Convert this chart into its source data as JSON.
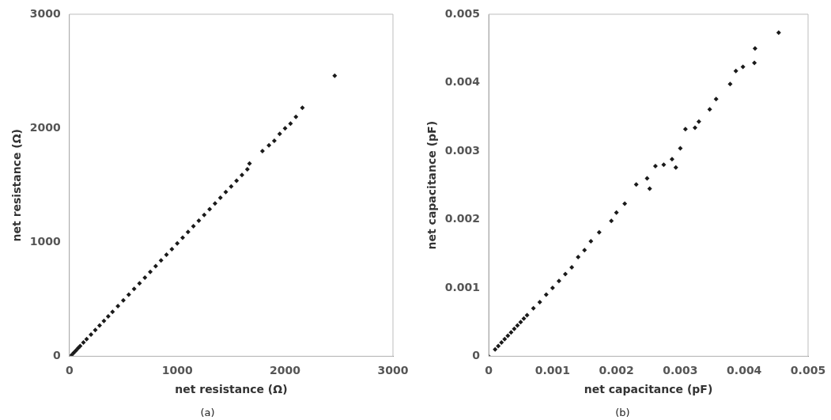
{
  "chart_data": [
    {
      "type": "scatter",
      "xlabel": "net resistance (Ω)",
      "ylabel": "net resistance (Ω)",
      "annotations": [
        "(a)"
      ],
      "xlim": [
        0,
        3000
      ],
      "ylim": [
        0,
        3000
      ],
      "xticks": [
        0,
        1000,
        2000,
        3000
      ],
      "yticks": [
        0,
        1000,
        2000,
        3000
      ],
      "grid": false,
      "legend": false,
      "marker": "diamond",
      "series": [
        {
          "color": "#1a1a1a",
          "x": [
            0,
            20,
            40,
            60,
            80,
            100,
            130,
            160,
            200,
            240,
            280,
            320,
            360,
            400,
            450,
            500,
            550,
            600,
            650,
            700,
            750,
            800,
            850,
            900,
            950,
            1000,
            1050,
            1100,
            1150,
            1200,
            1250,
            1300,
            1350,
            1400,
            1450,
            1500,
            1550,
            1600,
            1650,
            1670,
            1790,
            1850,
            1900,
            1950,
            2000,
            2050,
            2100,
            2160,
            2460
          ],
          "values": [
            0,
            10,
            30,
            50,
            70,
            90,
            120,
            150,
            190,
            230,
            270,
            310,
            350,
            390,
            440,
            490,
            540,
            590,
            640,
            690,
            740,
            790,
            840,
            890,
            940,
            990,
            1040,
            1090,
            1140,
            1190,
            1240,
            1290,
            1340,
            1390,
            1440,
            1490,
            1540,
            1590,
            1640,
            1690,
            1800,
            1850,
            1890,
            1950,
            2000,
            2040,
            2100,
            2180,
            2460
          ]
        }
      ]
    },
    {
      "type": "scatter",
      "xlabel": "net capacitance (pF)",
      "ylabel": "net capacitance (pF)",
      "annotations": [
        "(b)"
      ],
      "xlim": [
        0,
        0.005
      ],
      "ylim": [
        0,
        0.005
      ],
      "xticks": [
        0,
        0.001,
        0.002,
        0.003,
        0.004,
        0.005
      ],
      "yticks": [
        0,
        0.001,
        0.002,
        0.003,
        0.004,
        0.005
      ],
      "grid": false,
      "legend": false,
      "marker": "diamond",
      "series": [
        {
          "color": "#1a1a1a",
          "x": [
            0,
            0.0001,
            0.00015,
            0.0002,
            0.00025,
            0.0003,
            0.00035,
            0.0004,
            0.00045,
            0.0005,
            0.00055,
            0.0006,
            0.0007,
            0.0008,
            0.0009,
            0.001,
            0.0011,
            0.0012,
            0.0013,
            0.0014,
            0.0015,
            0.0016,
            0.00173,
            0.00192,
            0.002,
            0.00213,
            0.00231,
            0.00248,
            0.00252,
            0.00261,
            0.00274,
            0.00287,
            0.00293,
            0.003,
            0.00308,
            0.00323,
            0.00329,
            0.00346,
            0.00356,
            0.00378,
            0.00387,
            0.00398,
            0.00416,
            0.00417,
            0.00454
          ],
          "values": [
            0,
            0.0001,
            0.00015,
            0.0002,
            0.00025,
            0.0003,
            0.00035,
            0.0004,
            0.00045,
            0.0005,
            0.00055,
            0.0006,
            0.0007,
            0.00079,
            0.0009,
            0.001,
            0.0011,
            0.0012,
            0.0013,
            0.00145,
            0.00155,
            0.00168,
            0.00181,
            0.00198,
            0.0021,
            0.00223,
            0.00251,
            0.0026,
            0.00245,
            0.00278,
            0.0028,
            0.00288,
            0.00276,
            0.00304,
            0.00332,
            0.00334,
            0.00343,
            0.00361,
            0.00376,
            0.00398,
            0.00417,
            0.00423,
            0.00429,
            0.0045,
            0.00473
          ]
        }
      ]
    }
  ]
}
